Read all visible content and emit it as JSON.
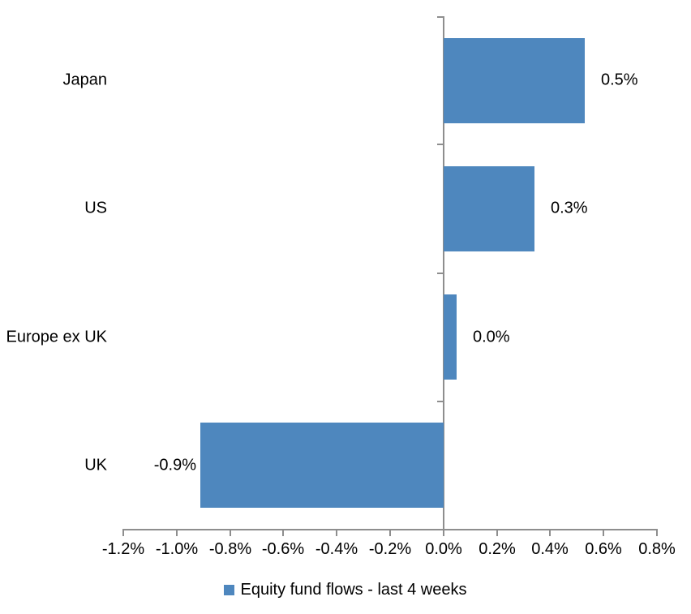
{
  "chart_data": {
    "type": "bar",
    "orientation": "horizontal",
    "title": "",
    "xlabel": "",
    "ylabel": "",
    "categories": [
      "Japan",
      "US",
      "Europe ex UK",
      "UK"
    ],
    "series": [
      {
        "name": "Equity fund flows - last 4 weeks",
        "values": [
          0.53,
          0.34,
          0.05,
          -0.91
        ],
        "value_labels": [
          "0.5%",
          "0.3%",
          "0.0%",
          "-0.9%"
        ]
      }
    ],
    "xlim": [
      -1.2,
      0.8
    ],
    "x_tick_step": 0.2,
    "x_tick_labels": [
      "-1.2%",
      "-1.0%",
      "-0.8%",
      "-0.6%",
      "-0.4%",
      "-0.2%",
      "0.0%",
      "0.2%",
      "0.4%",
      "0.6%",
      "0.8%"
    ],
    "grid": false,
    "legend_position": "bottom-center",
    "bar_color": "#4E87BE",
    "axis_color": "#8E8E8E",
    "text_color": "#000000",
    "background_color": "#FFFFFF"
  },
  "legend": {
    "label": "Equity fund flows - last 4 weeks"
  }
}
